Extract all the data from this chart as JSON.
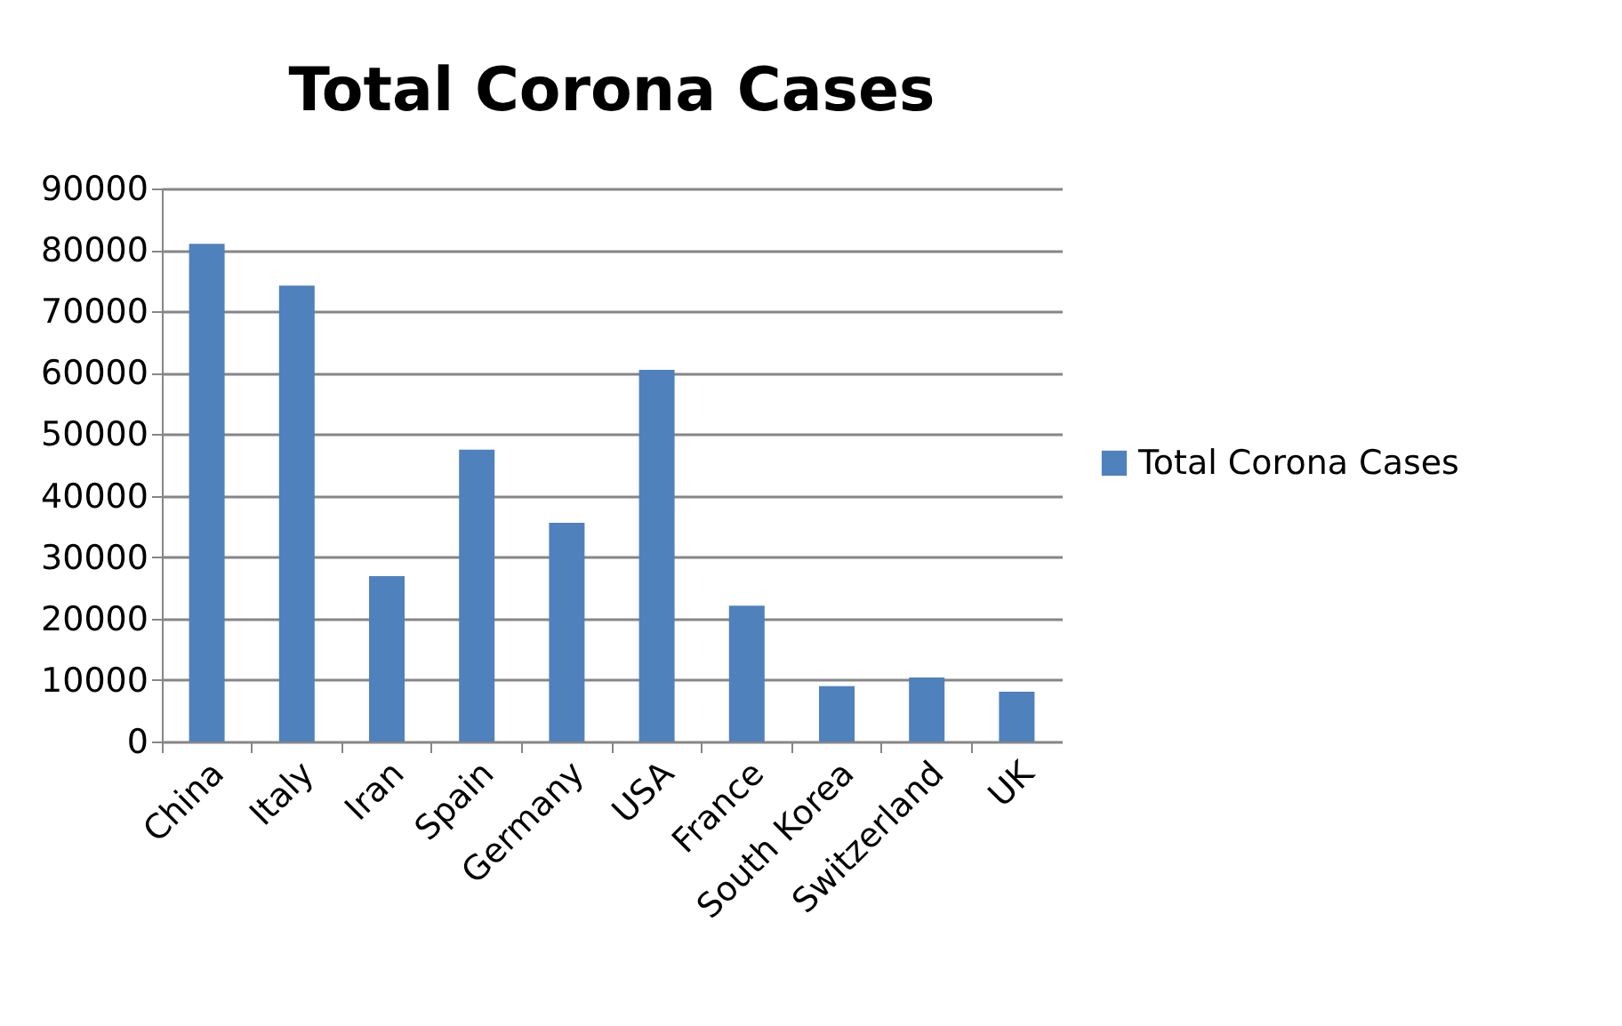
{
  "chart_data": {
    "type": "bar",
    "title": "Total Corona Cases",
    "categories": [
      "China",
      "Italy",
      "Iran",
      "Spain",
      "Germany",
      "USA",
      "France",
      "South Korea",
      "Switzerland",
      "UK"
    ],
    "series": [
      {
        "name": "Total Corona Cases",
        "color": "#4f81bd",
        "values": [
          81000,
          74200,
          26900,
          47500,
          35600,
          60500,
          22100,
          9000,
          10400,
          8100
        ]
      }
    ],
    "ylim": [
      0,
      90000
    ],
    "yticks": [
      0,
      10000,
      20000,
      30000,
      40000,
      50000,
      60000,
      70000,
      80000,
      90000
    ],
    "grid": "y",
    "legend": "right"
  }
}
